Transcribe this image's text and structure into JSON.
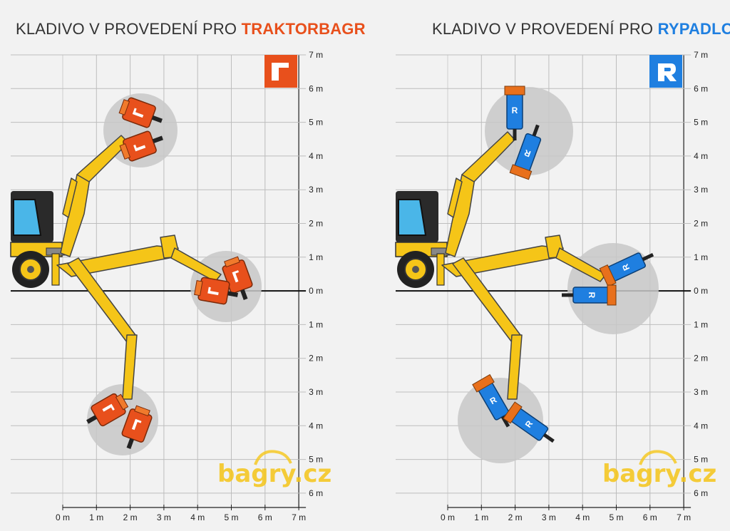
{
  "left_panel": {
    "title_prefix": "KLADIVO V PROVEDENÍ PRO ",
    "title_highlight": "TRAKTORBAGR",
    "accent": "#e8501c",
    "badge_icon": "traktorbagr-logo-icon"
  },
  "right_panel": {
    "title_prefix": "KLADIVO V PROVEDENÍ PRO ",
    "title_highlight": "RYPADLO",
    "accent": "#1f7fe0",
    "badge_icon": "rypadlo-logo-icon"
  },
  "axis": {
    "y_labels": [
      "7 m",
      "6 m",
      "5 m",
      "4 m",
      "3 m",
      "2 m",
      "1 m",
      "0 m",
      "1 m",
      "2 m",
      "3 m",
      "4 m",
      "5 m",
      "6 m"
    ],
    "x_labels": [
      "0 m",
      "1 m",
      "2 m",
      "3 m",
      "4 m",
      "5 m",
      "6 m",
      "7 m"
    ]
  },
  "watermark": {
    "text": "bagry.cz",
    "color": "#f5c518"
  },
  "colors": {
    "machine_yellow": "#f5c518",
    "grid": "#cfcfcf",
    "grid_dark": "#222222",
    "reach_circle": "#c8c8c8"
  }
}
